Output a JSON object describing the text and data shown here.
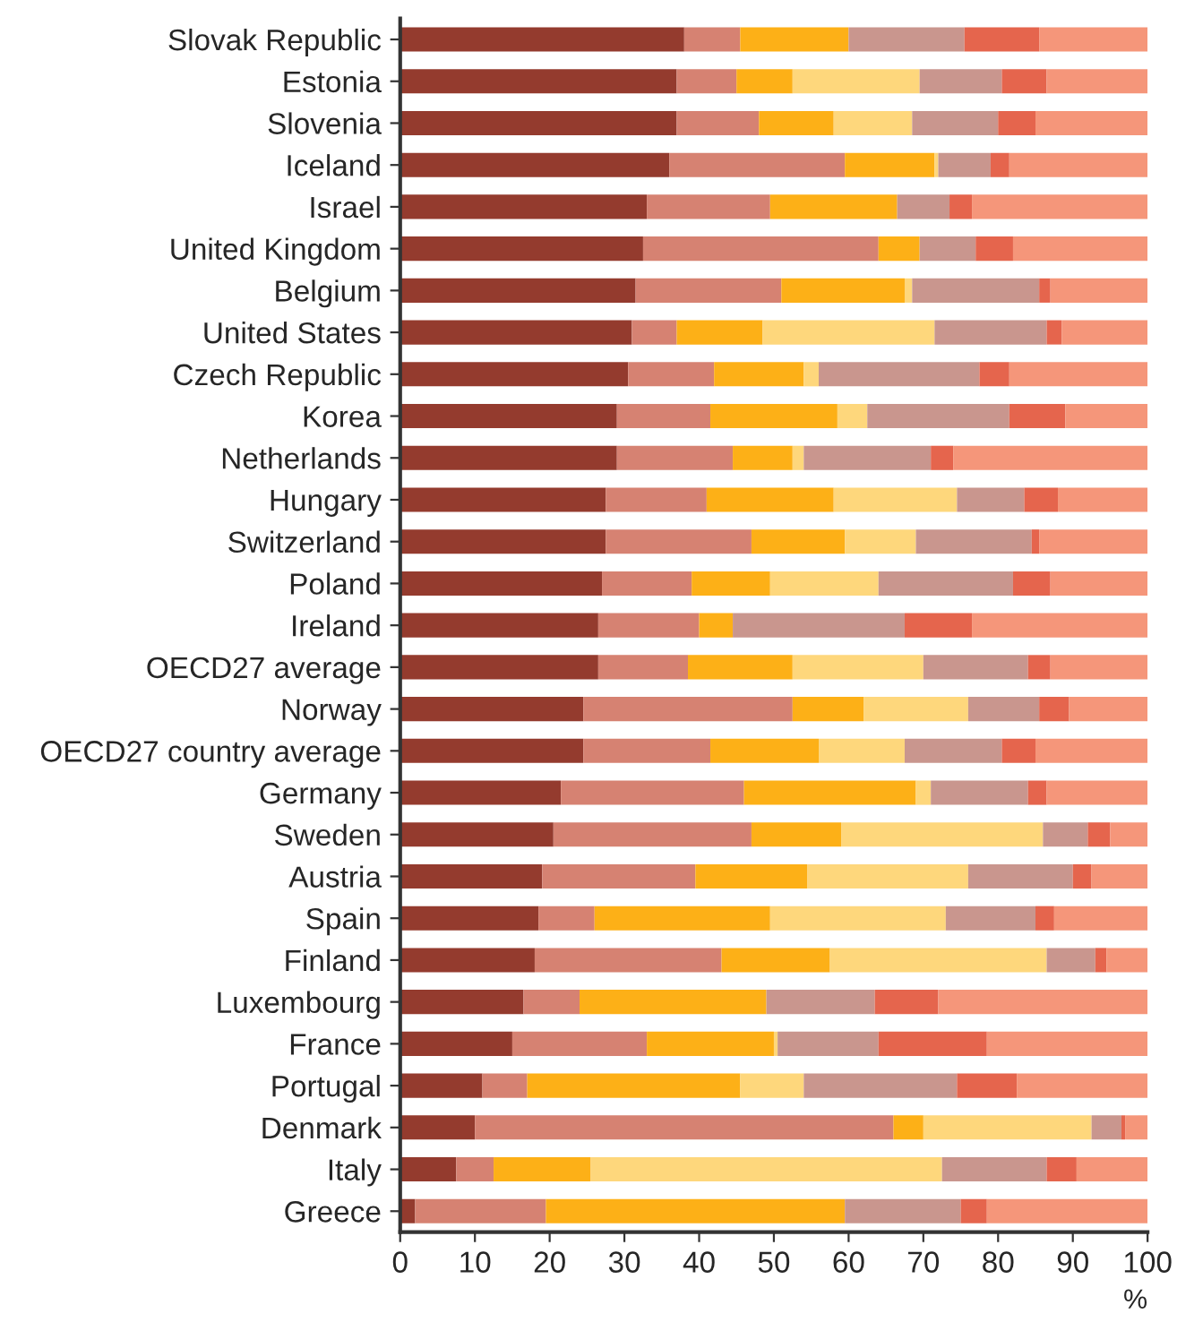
{
  "chart_data": {
    "type": "bar",
    "orientation": "horizontal",
    "stacked": true,
    "xlabel": "%",
    "categories": [
      "Slovak Republic",
      "Estonia",
      "Slovenia",
      "Iceland",
      "Israel",
      "United Kingdom",
      "Belgium",
      "United States",
      "Czech Republic",
      "Korea",
      "Netherlands",
      "Hungary",
      "Switzerland",
      "Poland",
      "Ireland",
      "OECD27 average",
      "Norway",
      "OECD27 country average",
      "Germany",
      "Sweden",
      "Austria",
      "Spain",
      "Finland",
      "Luxembourg",
      "France",
      "Portugal",
      "Denmark",
      "Italy",
      "Greece"
    ],
    "xlim": [
      0,
      100
    ],
    "xticks": [
      0,
      10,
      20,
      30,
      40,
      50,
      60,
      70,
      80,
      90,
      100
    ],
    "series": [
      {
        "color": "#943b2e",
        "values": [
          38,
          37,
          37,
          36,
          33,
          32.5,
          31.5,
          31,
          30.5,
          29,
          29,
          27.5,
          27.5,
          27,
          26.5,
          26.5,
          24.5,
          24.5,
          21.5,
          20.5,
          19,
          18.5,
          18,
          16.5,
          15,
          11,
          10,
          7.5,
          2
        ]
      },
      {
        "color": "#d68272",
        "values": [
          7.5,
          8,
          11,
          23.5,
          16.5,
          31.5,
          19.5,
          6,
          11.5,
          12.5,
          15.5,
          13.5,
          19.5,
          12,
          13.5,
          12,
          28,
          17,
          24.5,
          26.5,
          20.5,
          7.5,
          25,
          7.5,
          18,
          6,
          56,
          5,
          17.5
        ]
      },
      {
        "color": "#fdb017",
        "values": [
          14.5,
          7.5,
          10,
          12,
          17,
          5.5,
          16.5,
          11.5,
          12,
          17,
          8,
          17,
          12.5,
          10.5,
          4.5,
          14,
          9.5,
          14.5,
          23,
          12,
          15,
          23.5,
          14.5,
          25,
          17,
          28.5,
          4,
          13,
          40
        ]
      },
      {
        "color": "#fed77c",
        "values": [
          0,
          17,
          10.5,
          0.5,
          0,
          0,
          1,
          23,
          2,
          4,
          1.5,
          16.5,
          9.5,
          14.5,
          0,
          17.5,
          14,
          11.5,
          2,
          27,
          21.5,
          23.5,
          29,
          0,
          0.5,
          8.5,
          22.5,
          47,
          0
        ]
      },
      {
        "color": "#c9968e",
        "values": [
          15.5,
          11,
          11.5,
          7,
          7,
          7.5,
          17,
          15,
          21.5,
          19,
          17,
          9,
          15.5,
          18,
          23,
          14,
          9.5,
          13,
          13,
          6,
          14,
          12,
          6.5,
          14.5,
          13.5,
          20.5,
          4,
          14,
          15.5
        ]
      },
      {
        "color": "#e5654d",
        "values": [
          10,
          6,
          5,
          2.5,
          3,
          5,
          1.5,
          2,
          4,
          7.5,
          3,
          4.5,
          1,
          5,
          9,
          3,
          4,
          4.5,
          2.5,
          3,
          2.5,
          2.5,
          1.5,
          8.5,
          14.5,
          8,
          0.5,
          4,
          3.5
        ]
      },
      {
        "color": "#f5967a",
        "values": [
          14.5,
          13.5,
          15,
          18.5,
          23.5,
          18,
          13,
          11.5,
          18.5,
          11,
          26,
          12,
          14.5,
          13,
          23.5,
          13,
          10.5,
          15,
          13.5,
          5,
          7.5,
          12.5,
          5.5,
          28,
          21.5,
          17.5,
          3,
          9.5,
          21.5
        ]
      }
    ]
  }
}
